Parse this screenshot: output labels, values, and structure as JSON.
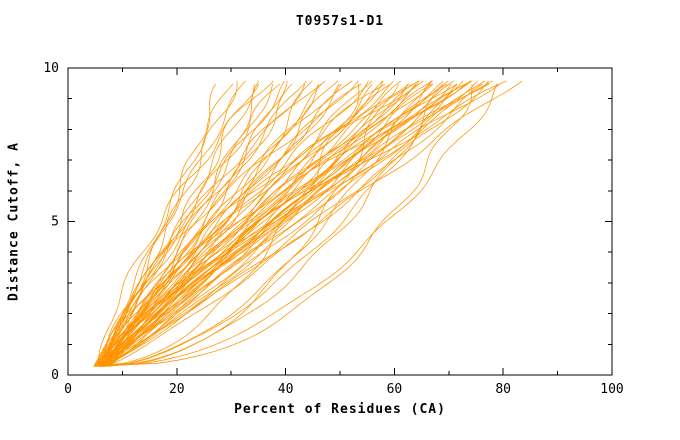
{
  "chart_data": {
    "type": "line",
    "title": "T0957s1-D1",
    "xlabel": "Percent of Residues (CA)",
    "ylabel": "Distance Cutoff, A",
    "xlim": [
      0,
      100
    ],
    "ylim": [
      0,
      10
    ],
    "xticks": [
      0,
      20,
      40,
      60,
      80,
      100
    ],
    "yticks": [
      0,
      5,
      10
    ],
    "xminor": [
      10,
      30,
      50,
      70,
      90
    ],
    "yminor": [
      1,
      2,
      3,
      4,
      6,
      7,
      8,
      9
    ],
    "grid": false,
    "legend": "none",
    "line_color": "#ff9300",
    "axis_color": "#000000",
    "background_color": "#ffffff",
    "y_start": 0.28,
    "y_end": 9.58,
    "series_note": "Each curve approximated as x(y)=x0+(xe-x0)*t^q with jitter; params per curve: [x0, xe, q, phase, amp]",
    "curves": [
      [
        5.2,
        28,
        0.85,
        0.5,
        1.0
      ],
      [
        6.0,
        30,
        1.1,
        2.1,
        0.9
      ],
      [
        5.5,
        31,
        0.95,
        4.2,
        1.1
      ],
      [
        6.8,
        33,
        1.2,
        1.0,
        0.8
      ],
      [
        5.0,
        34,
        0.9,
        3.3,
        1.2
      ],
      [
        7.2,
        35,
        1.05,
        5.1,
        0.9
      ],
      [
        6.1,
        36,
        0.8,
        0.2,
        1.0
      ],
      [
        5.8,
        37,
        1.5,
        2.8,
        1.1
      ],
      [
        6.5,
        38,
        0.95,
        4.9,
        0.8
      ],
      [
        5.3,
        39,
        1.1,
        1.7,
        1.2
      ],
      [
        7.0,
        40,
        0.85,
        3.9,
        0.9
      ],
      [
        6.2,
        41,
        1.2,
        5.6,
        1.0
      ],
      [
        5.6,
        42,
        0.9,
        0.8,
        1.1
      ],
      [
        6.9,
        43,
        1.05,
        2.4,
        0.9
      ],
      [
        5.1,
        44,
        1.15,
        4.5,
        1.2
      ],
      [
        6.4,
        45,
        0.8,
        1.3,
        1.0
      ],
      [
        7.3,
        46,
        1.5,
        3.0,
        0.8
      ],
      [
        5.9,
        47,
        0.95,
        5.2,
        1.1
      ],
      [
        6.6,
        48,
        1.1,
        0.4,
        0.9
      ],
      [
        5.4,
        49,
        0.85,
        2.0,
        1.2
      ],
      [
        7.1,
        50,
        1.2,
        4.1,
        1.0
      ],
      [
        6.0,
        51,
        0.9,
        5.8,
        0.9
      ],
      [
        5.7,
        52,
        1.05,
        1.5,
        1.1
      ],
      [
        6.8,
        53,
        1.15,
        3.6,
        1.0
      ],
      [
        5.2,
        54,
        0.5,
        5.0,
        1.2
      ],
      [
        6.3,
        55,
        1.55,
        0.9,
        0.9
      ],
      [
        7.4,
        55,
        0.95,
        2.6,
        1.0
      ],
      [
        5.5,
        56,
        1.1,
        4.7,
        1.1
      ],
      [
        6.7,
        57,
        0.85,
        0.1,
        0.9
      ],
      [
        5.0,
        58,
        1.2,
        2.2,
        1.2
      ],
      [
        6.1,
        58,
        0.9,
        4.3,
        1.0
      ],
      [
        7.2,
        59,
        1.05,
        5.9,
        0.8
      ],
      [
        5.8,
        60,
        1.15,
        1.1,
        1.1
      ],
      [
        6.5,
        60,
        0.45,
        3.2,
        1.0
      ],
      [
        5.3,
        61,
        1.25,
        5.3,
        1.2
      ],
      [
        6.9,
        62,
        0.95,
        0.6,
        0.9
      ],
      [
        5.6,
        62,
        1.1,
        2.7,
        1.1
      ],
      [
        6.2,
        63,
        0.85,
        4.8,
        1.0
      ],
      [
        7.0,
        64,
        1.2,
        1.9,
        0.9
      ],
      [
        5.1,
        64,
        0.9,
        3.5,
        1.2
      ],
      [
        6.6,
        65,
        1.05,
        5.5,
        1.0
      ],
      [
        5.9,
        65,
        1.15,
        0.3,
        1.1
      ],
      [
        6.3,
        66,
        0.55,
        2.9,
        0.9
      ],
      [
        7.3,
        66,
        1.6,
        4.4,
        1.0
      ],
      [
        5.4,
        67,
        0.95,
        1.6,
        1.2
      ],
      [
        6.8,
        67,
        1.1,
        3.7,
        0.9
      ],
      [
        5.7,
        68,
        0.85,
        5.7,
        1.1
      ],
      [
        6.4,
        68,
        1.2,
        0.7,
        1.0
      ],
      [
        5.2,
        69,
        0.9,
        2.3,
        1.2
      ],
      [
        7.1,
        69,
        1.05,
        4.0,
        0.8
      ],
      [
        6.0,
        70,
        1.15,
        5.4,
        1.0
      ],
      [
        5.5,
        70,
        0.5,
        1.2,
        1.1
      ],
      [
        6.7,
        71,
        1.25,
        3.1,
        0.9
      ],
      [
        5.8,
        71,
        0.95,
        4.6,
        1.1
      ],
      [
        6.2,
        72,
        1.1,
        0.0,
        1.0
      ],
      [
        7.4,
        72,
        0.6,
        2.5,
        0.9
      ],
      [
        5.3,
        73,
        1.2,
        4.2,
        1.2
      ],
      [
        6.5,
        73,
        0.9,
        5.8,
        1.0
      ],
      [
        5.6,
        74,
        1.05,
        1.4,
        1.1
      ],
      [
        6.9,
        74,
        1.15,
        3.4,
        0.9
      ],
      [
        5.0,
        75,
        0.4,
        5.1,
        1.2
      ],
      [
        6.1,
        75,
        1.5,
        0.5,
        1.0
      ],
      [
        7.2,
        76,
        0.95,
        2.1,
        0.9
      ],
      [
        5.9,
        76,
        1.1,
        4.5,
        1.1
      ],
      [
        6.6,
        77,
        0.85,
        0.8,
        1.0
      ],
      [
        5.4,
        77,
        1.2,
        2.8,
        1.2
      ],
      [
        6.3,
        78,
        0.9,
        4.9,
        1.0
      ],
      [
        7.0,
        78,
        1.05,
        1.8,
        0.9
      ],
      [
        5.7,
        79,
        1.15,
        3.8,
        1.1
      ],
      [
        6.4,
        80,
        0.5,
        5.6,
        1.0
      ],
      [
        5.2,
        81,
        1.25,
        1.0,
        1.1
      ],
      [
        6.0,
        83,
        0.95,
        3.0,
        1.0
      ]
    ]
  }
}
